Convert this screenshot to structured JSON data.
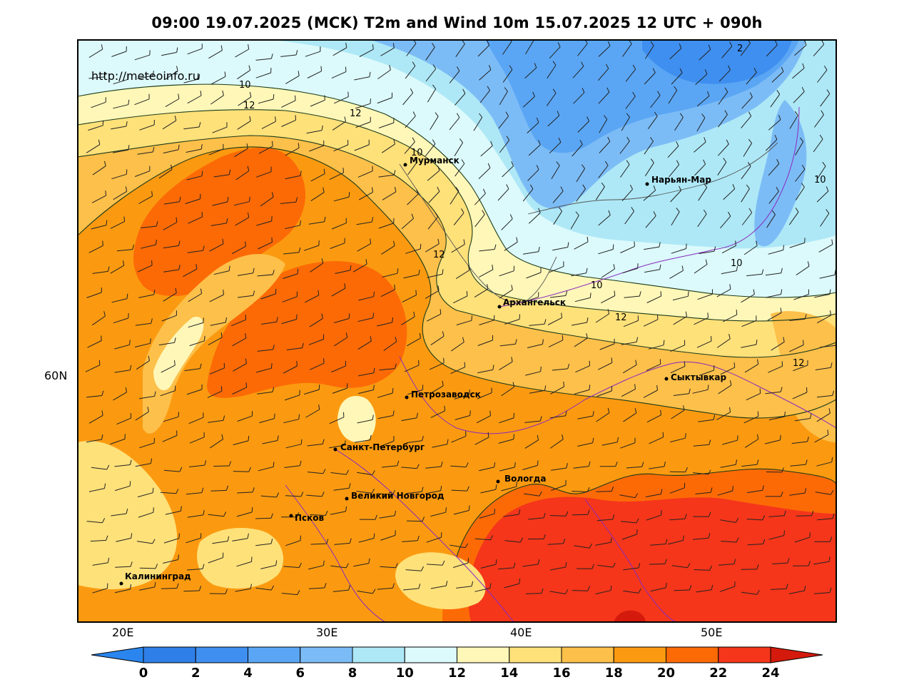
{
  "title": "09:00 19.07.2025 (MCK) T2m and Wind 10m 15.07.2025 12 UTC + 090h",
  "source": "http://meteoinfo.ru",
  "axes": {
    "lon_labels": [
      "20E",
      "30E",
      "40E",
      "50E"
    ],
    "lat_labels": [
      "60N"
    ]
  },
  "cities": [
    {
      "name": "Мурманск"
    },
    {
      "name": "Нарьян-Мар"
    },
    {
      "name": "Архангельск"
    },
    {
      "name": "Сыктывкар"
    },
    {
      "name": "Петрозаводск"
    },
    {
      "name": "Санкт-Петербург"
    },
    {
      "name": "Вологда"
    },
    {
      "name": "Великий Новгород"
    },
    {
      "name": "Псков"
    },
    {
      "name": "Калининград"
    }
  ],
  "isotherm_labels": [
    "2",
    "10",
    "12",
    "12",
    "10",
    "12",
    "10",
    "10",
    "10",
    "12",
    "12"
  ],
  "colorbar": {
    "unit_hint": "",
    "ticks": [
      "0",
      "2",
      "4",
      "6",
      "8",
      "10",
      "12",
      "14",
      "16",
      "18",
      "20",
      "22",
      "24"
    ],
    "colors": [
      "#2f7fe8",
      "#3f8ff0",
      "#5aa6f4",
      "#7cbcf6",
      "#aee8f6",
      "#dcfafc",
      "#fff7b8",
      "#ffe17a",
      "#fdc04a",
      "#fb9a10",
      "#fc6a06",
      "#f5361a",
      "#d31a0c",
      "#2a86ee"
    ]
  }
}
